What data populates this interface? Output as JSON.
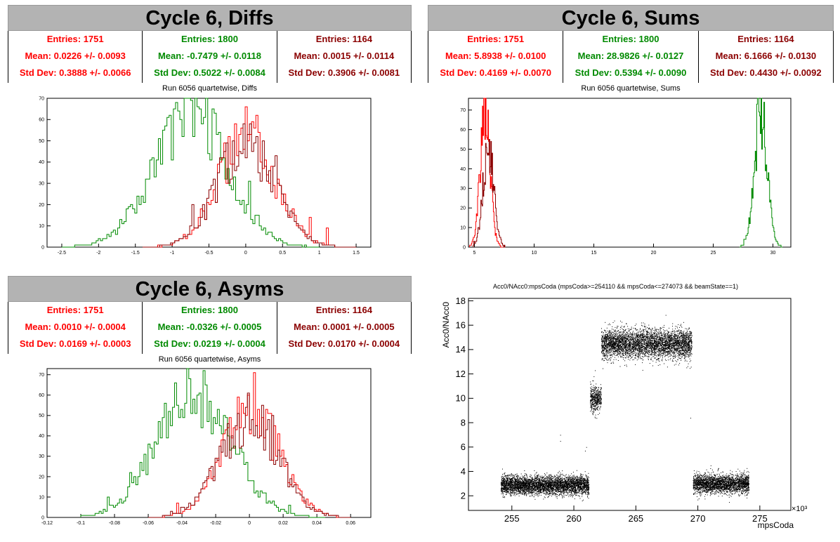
{
  "colors": {
    "red": "#ff0000",
    "green": "#008a00",
    "darkred": "#8b0000"
  },
  "panels": {
    "diffs": {
      "title": "Cycle 6, Diffs",
      "subtitle": "Run 6056 quartetwise, Diffs",
      "stats": [
        {
          "entries": "Entries: 1751",
          "mean": "Mean: 0.0226 +/- 0.0093",
          "std": "Std Dev: 0.3888 +/- 0.0066"
        },
        {
          "entries": "Entries: 1800",
          "mean": "Mean: -0.7479 +/- 0.0118",
          "std": "Std Dev: 0.5022 +/- 0.0084"
        },
        {
          "entries": "Entries: 1164",
          "mean": "Mean: 0.0015 +/- 0.0114",
          "std": "Std Dev: 0.3906 +/- 0.0081"
        }
      ]
    },
    "sums": {
      "title": "Cycle 6, Sums",
      "subtitle": "Run 6056 quartetwise, Sums",
      "stats": [
        {
          "entries": "Entries: 1751",
          "mean": "Mean: 5.8938 +/- 0.0100",
          "std": "Std Dev: 0.4169 +/- 0.0070"
        },
        {
          "entries": "Entries: 1800",
          "mean": "Mean: 28.9826 +/- 0.0127",
          "std": "Std Dev: 0.5394 +/- 0.0090"
        },
        {
          "entries": "Entries: 1164",
          "mean": "Mean: 6.1666 +/- 0.0130",
          "std": "Std Dev: 0.4430 +/- 0.0092"
        }
      ]
    },
    "asyms": {
      "title": "Cycle 6, Asyms",
      "subtitle": "Run 6056 quartetwise, Asyms",
      "stats": [
        {
          "entries": "Entries: 1751",
          "mean": "Mean: 0.0010 +/- 0.0004",
          "std": "Std Dev: 0.0169 +/- 0.0003"
        },
        {
          "entries": "Entries: 1800",
          "mean": "Mean: -0.0326 +/- 0.0005",
          "std": "Std Dev: 0.0219 +/- 0.0004"
        },
        {
          "entries": "Entries: 1164",
          "mean": "Mean: 0.0001 +/- 0.0005",
          "std": "Std Dev: 0.0170 +/- 0.0004"
        }
      ]
    }
  },
  "chart_data": [
    {
      "id": "diffs",
      "type": "histogram",
      "xlim": [
        -2.7,
        1.7
      ],
      "ylim": [
        0,
        70
      ],
      "xticks": [
        -2.5,
        -2,
        -1.5,
        -1,
        -0.5,
        0,
        0.5,
        1,
        1.5
      ],
      "xtick_labels": [
        "-2.5",
        "-2",
        "-1.5",
        "-1",
        "-0.5",
        "0",
        "0.5",
        "1",
        "1.5"
      ],
      "yticks": [
        0,
        10,
        20,
        30,
        40,
        50,
        60,
        70
      ],
      "ytick_labels": [
        "0",
        "10",
        "20",
        "30",
        "40",
        "50",
        "60",
        "70"
      ],
      "series": [
        {
          "color": "green",
          "mean": -0.7479,
          "sd": 0.5022,
          "peak": 63,
          "start": -2.5,
          "end": 1.0,
          "nbins": 120,
          "seed": 3
        },
        {
          "color": "red",
          "mean": 0.0226,
          "sd": 0.3888,
          "peak": 52,
          "start": -1.4,
          "end": 1.5,
          "nbins": 100,
          "seed": 7
        },
        {
          "color": "darkred",
          "mean": 0.0015,
          "sd": 0.3906,
          "peak": 49,
          "start": -1.4,
          "end": 1.5,
          "nbins": 100,
          "seed": 11
        }
      ]
    },
    {
      "id": "sums",
      "type": "histogram",
      "xlim": [
        4.5,
        31.5
      ],
      "ylim": [
        0,
        76
      ],
      "xticks": [
        5,
        10,
        15,
        20,
        25,
        30
      ],
      "xtick_labels": [
        "5",
        "10",
        "15",
        "20",
        "25",
        "30"
      ],
      "yticks": [
        0,
        10,
        20,
        30,
        40,
        50,
        60,
        70
      ],
      "ytick_labels": [
        "0",
        "10",
        "20",
        "30",
        "40",
        "50",
        "60",
        "70"
      ],
      "series": [
        {
          "color": "red",
          "mean": 5.8938,
          "sd": 0.4169,
          "peak": 68,
          "start": 4.6,
          "end": 7.4,
          "nbins": 55,
          "seed": 5
        },
        {
          "color": "darkred",
          "mean": 6.1666,
          "sd": 0.443,
          "peak": 50,
          "start": 4.9,
          "end": 7.6,
          "nbins": 55,
          "seed": 9
        },
        {
          "color": "green",
          "mean": 28.9826,
          "sd": 0.5394,
          "peak": 68,
          "start": 27.2,
          "end": 30.8,
          "nbins": 60,
          "seed": 13
        }
      ]
    },
    {
      "id": "asyms",
      "type": "histogram",
      "xlim": [
        -0.12,
        0.072
      ],
      "ylim": [
        0,
        73
      ],
      "xticks": [
        -0.12,
        -0.1,
        -0.08,
        -0.06,
        -0.04,
        -0.02,
        0,
        0.02,
        0.04,
        0.06
      ],
      "xtick_labels": [
        "-0.12",
        "-0.1",
        "-0.08",
        "-0.06",
        "-0.04",
        "-0.02",
        "0",
        "0.02",
        "0.04",
        "0.06"
      ],
      "yticks": [
        0,
        10,
        20,
        30,
        40,
        50,
        60,
        70
      ],
      "ytick_labels": [
        "0",
        "10",
        "20",
        "30",
        "40",
        "50",
        "60",
        "70"
      ],
      "series": [
        {
          "color": "green",
          "mean": -0.0326,
          "sd": 0.0219,
          "peak": 62,
          "start": -0.1,
          "end": 0.045,
          "nbins": 120,
          "seed": 17
        },
        {
          "color": "red",
          "mean": 0.001,
          "sd": 0.0169,
          "peak": 52,
          "start": -0.06,
          "end": 0.06,
          "nbins": 100,
          "seed": 19
        },
        {
          "color": "darkred",
          "mean": 0.0001,
          "sd": 0.017,
          "peak": 50,
          "start": -0.06,
          "end": 0.06,
          "nbins": 100,
          "seed": 23
        }
      ]
    },
    {
      "id": "scatter",
      "type": "scatter",
      "title": "Acc0/NAcc0:mpsCoda (mpsCoda>=254110 && mpsCoda<=274073 && beamState==1)",
      "xlabel": "mpsCoda",
      "ylabel": "Acc0/NAcc0",
      "x_multiplier": "×10³",
      "xlim": [
        251.5,
        277.5
      ],
      "ylim": [
        0.8,
        18.2
      ],
      "xticks": [
        255,
        260,
        265,
        270,
        275
      ],
      "xtick_labels": [
        "255",
        "260",
        "265",
        "270",
        "275"
      ],
      "yticks": [
        2,
        4,
        6,
        8,
        10,
        12,
        14,
        16,
        18
      ],
      "ytick_labels": [
        "2",
        "4",
        "6",
        "8",
        "10",
        "12",
        "14",
        "16",
        "18"
      ],
      "clusters": [
        {
          "x": [
            254.1,
            261.2
          ],
          "y_center": 2.9,
          "y_sd": 0.38,
          "n": 4200
        },
        {
          "x": [
            261.3,
            262.2
          ],
          "y_center": 10.0,
          "y_sd": 0.55,
          "n": 450
        },
        {
          "x": [
            262.2,
            269.5
          ],
          "y_center": 14.5,
          "y_sd": 0.6,
          "n": 4200
        },
        {
          "x": [
            269.6,
            274.1
          ],
          "y_center": 3.0,
          "y_sd": 0.38,
          "n": 2600
        }
      ],
      "sparse": [
        [
          258.9,
          7.0
        ],
        [
          258.9,
          6.5
        ],
        [
          261.0,
          6.0
        ],
        [
          260.9,
          5.7
        ],
        [
          261.7,
          12.3
        ],
        [
          261.6,
          11.8
        ],
        [
          269.4,
          8.4
        ],
        [
          264.0,
          15.9
        ],
        [
          266.0,
          13.2
        ],
        [
          268.5,
          12.9
        ]
      ]
    }
  ]
}
